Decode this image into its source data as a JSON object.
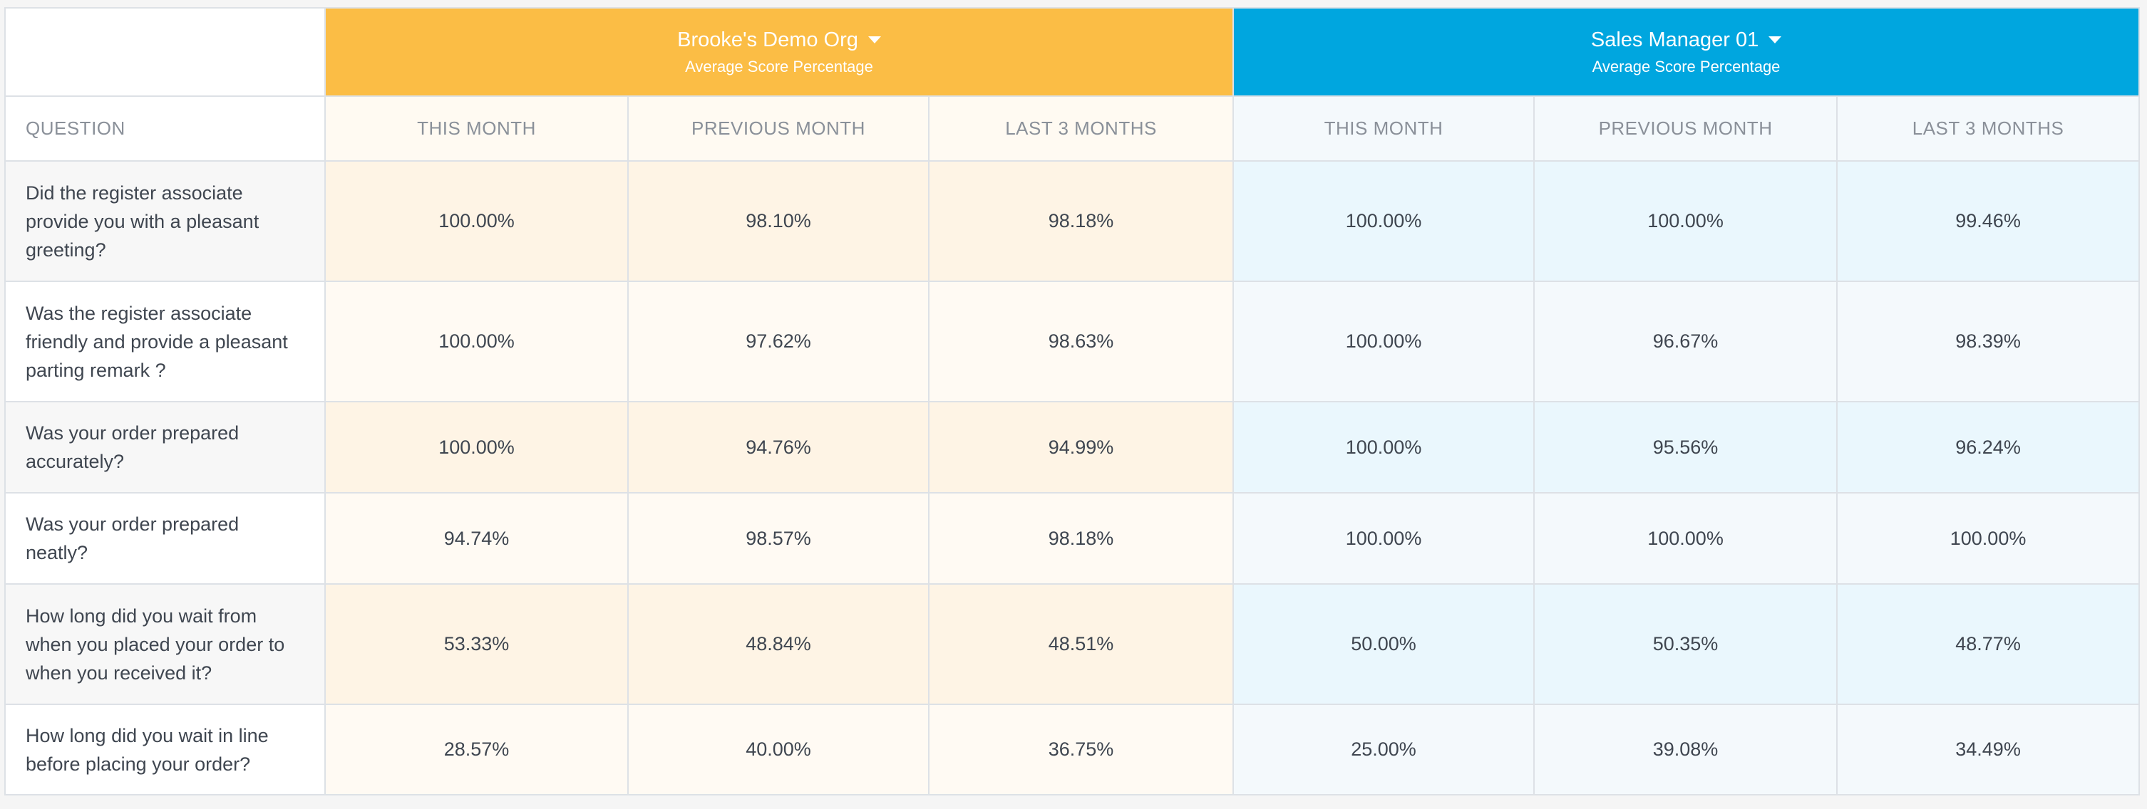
{
  "header": {
    "groups": [
      {
        "title": "Brooke's Demo Org",
        "subtitle": "Average Score Percentage"
      },
      {
        "title": "Sales Manager 01",
        "subtitle": "Average Score Percentage"
      }
    ],
    "columns": [
      "QUESTION",
      "THIS MONTH",
      "PREVIOUS MONTH",
      "LAST 3 MONTHS",
      "THIS MONTH",
      "PREVIOUS MONTH",
      "LAST 3 MONTHS"
    ]
  },
  "table": {
    "rows": [
      [
        "Did the register associate provide you with a pleasant greeting?",
        "100.00%",
        "98.10%",
        "98.18%",
        "100.00%",
        "100.00%",
        "99.46%"
      ],
      [
        "Was the register associate friendly and provide a pleasant parting remark ?",
        "100.00%",
        "97.62%",
        "98.63%",
        "100.00%",
        "96.67%",
        "98.39%"
      ],
      [
        "Was your order prepared accurately?",
        "100.00%",
        "94.76%",
        "94.99%",
        "100.00%",
        "95.56%",
        "96.24%"
      ],
      [
        "Was your order prepared neatly?",
        "94.74%",
        "98.57%",
        "98.18%",
        "100.00%",
        "100.00%",
        "100.00%"
      ],
      [
        "How long did you wait from when you placed your order to when you received it?",
        "53.33%",
        "48.84%",
        "48.51%",
        "50.00%",
        "50.35%",
        "48.77%"
      ],
      [
        "How long did you wait in line before placing your order?",
        "28.57%",
        "40.00%",
        "36.75%",
        "25.00%",
        "39.08%",
        "34.49%"
      ]
    ]
  }
}
